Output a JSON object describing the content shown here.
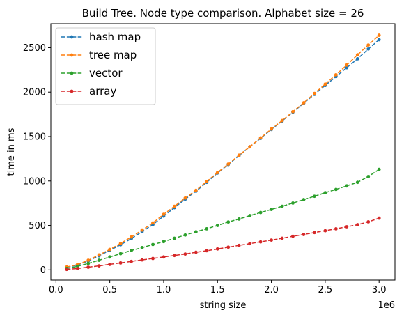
{
  "chart_data": {
    "type": "line",
    "title": "Build Tree. Node type comparison. Alphabet size = 26",
    "xlabel": "string size",
    "ylabel": "time in ms",
    "x_offset_label": "1e6",
    "xlim": [
      -0.0475,
      3.1475
    ],
    "ylim": [
      -115,
      2770
    ],
    "x_ticks": [
      0.0,
      0.5,
      1.0,
      1.5,
      2.0,
      2.5,
      3.0
    ],
    "x_tick_labels": [
      "0.0",
      "0.5",
      "1.0",
      "1.5",
      "2.0",
      "2.5",
      "3.0"
    ],
    "y_ticks": [
      0,
      500,
      1000,
      1500,
      2000,
      2500
    ],
    "y_tick_labels": [
      "0",
      "500",
      "1000",
      "1500",
      "2000",
      "2500"
    ],
    "grid": false,
    "legend_position": "top-left",
    "x": [
      0.1,
      0.2,
      0.3,
      0.4,
      0.5,
      0.6,
      0.7,
      0.8,
      0.9,
      1.0,
      1.1,
      1.2,
      1.3,
      1.4,
      1.5,
      1.6,
      1.7,
      1.8,
      1.9,
      2.0,
      2.1,
      2.2,
      2.3,
      2.4,
      2.5,
      2.6,
      2.7,
      2.8,
      2.9,
      3.0
    ],
    "series": [
      {
        "name": "hash map",
        "color": "#1f77b4",
        "values": [
          28,
          55,
          100,
          158,
          220,
          282,
          352,
          430,
          510,
          605,
          700,
          795,
          885,
          985,
          1090,
          1185,
          1285,
          1385,
          1480,
          1580,
          1675,
          1775,
          1875,
          1975,
          2075,
          2175,
          2275,
          2375,
          2485,
          2590
        ]
      },
      {
        "name": "tree map",
        "color": "#ff7f0e",
        "values": [
          32,
          60,
          108,
          168,
          230,
          298,
          370,
          448,
          528,
          625,
          715,
          808,
          895,
          995,
          1095,
          1190,
          1290,
          1385,
          1485,
          1585,
          1680,
          1780,
          1880,
          1985,
          2090,
          2195,
          2305,
          2420,
          2530,
          2640
        ]
      },
      {
        "name": "vector",
        "color": "#2ca02c",
        "values": [
          15,
          40,
          72,
          108,
          145,
          182,
          218,
          250,
          285,
          318,
          355,
          392,
          428,
          462,
          500,
          538,
          572,
          610,
          645,
          680,
          715,
          752,
          790,
          828,
          868,
          905,
          945,
          985,
          1050,
          1130
        ]
      },
      {
        "name": "array",
        "color": "#d62728",
        "values": [
          5,
          15,
          30,
          45,
          62,
          78,
          95,
          112,
          128,
          145,
          162,
          178,
          198,
          215,
          235,
          255,
          275,
          295,
          315,
          335,
          355,
          378,
          398,
          420,
          440,
          462,
          485,
          508,
          540,
          582
        ]
      }
    ]
  }
}
